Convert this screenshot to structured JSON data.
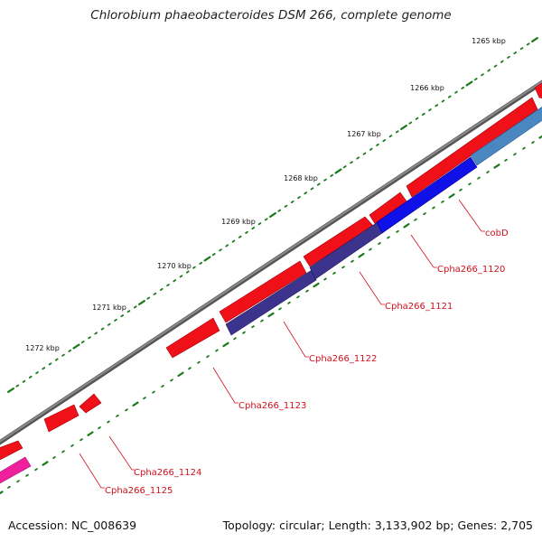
{
  "title": "Chlorobium phaeobacteroides DSM 266, complete genome",
  "footer": {
    "accession": "Accession: NC_008639",
    "topology": "Topology: circular; Length: 3,133,902 bp; Genes: 2,705"
  },
  "scale_labels": [
    "1265 kbp",
    "1266 kbp",
    "1267 kbp",
    "1268 kbp",
    "1269 kbp",
    "1270 kbp",
    "1271 kbp",
    "1272 kbp"
  ],
  "gene_labels": [
    "cobD",
    "Cpha266_1120",
    "Cpha266_1121",
    "Cpha266_1122",
    "Cpha266_1123",
    "Cpha266_1124",
    "Cpha266_1125"
  ],
  "colors": {
    "backbone": "#7a787a",
    "cds_forward": "#f01018",
    "cds_reverse_blue": "#1010e8",
    "cds_reverse_purple": "#3c348c",
    "cds_reverse_steel": "#4a86c0",
    "cds_reverse_pink": "#f0209c",
    "ticks": "#1a7a1a",
    "label": "#d0101c"
  }
}
